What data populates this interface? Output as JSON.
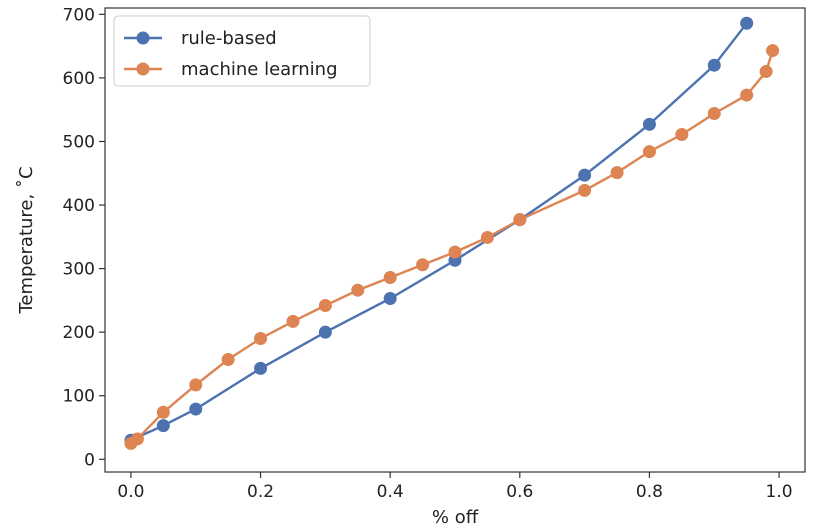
{
  "chart_data": {
    "type": "line",
    "xlabel": "% off",
    "ylabel": "Temperature, ˚C",
    "xlim": [
      -0.04,
      1.04
    ],
    "ylim": [
      -20,
      710
    ],
    "xticks": [
      0.0,
      0.2,
      0.4,
      0.6,
      0.8,
      1.0
    ],
    "xtick_labels": [
      "0.0",
      "0.2",
      "0.4",
      "0.6",
      "0.8",
      "1.0"
    ],
    "yticks": [
      0,
      100,
      200,
      300,
      400,
      500,
      600,
      700
    ],
    "ytick_labels": [
      "0",
      "100",
      "200",
      "300",
      "400",
      "500",
      "600",
      "700"
    ],
    "grid": false,
    "legend_position": "upper-left",
    "series": [
      {
        "name": "rule-based",
        "color": "#4c72b0",
        "x": [
          0.0,
          0.05,
          0.1,
          0.2,
          0.3,
          0.4,
          0.5,
          0.6,
          0.7,
          0.8,
          0.9,
          0.95
        ],
        "y": [
          30,
          53,
          79,
          143,
          200,
          253,
          313,
          377,
          447,
          527,
          620,
          686
        ]
      },
      {
        "name": "machine learning",
        "color": "#dd8452",
        "x": [
          0.0,
          0.01,
          0.05,
          0.1,
          0.15,
          0.2,
          0.25,
          0.3,
          0.35,
          0.4,
          0.45,
          0.5,
          0.55,
          0.6,
          0.7,
          0.75,
          0.8,
          0.85,
          0.9,
          0.95,
          0.98,
          0.99
        ],
        "y": [
          25,
          32,
          74,
          117,
          157,
          190,
          217,
          242,
          266,
          286,
          306,
          326,
          349,
          377,
          423,
          451,
          484,
          511,
          544,
          573,
          610,
          643
        ]
      }
    ]
  }
}
